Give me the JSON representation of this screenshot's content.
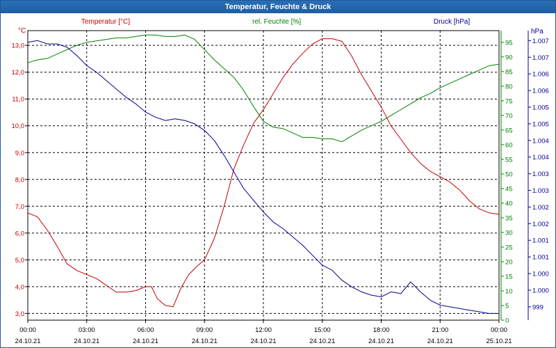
{
  "chart_data": {
    "type": "line",
    "title": "Temperatur, Feuchte & Druck",
    "x_ticks": [
      {
        "time": "00:00",
        "date": "24.10.21"
      },
      {
        "time": "03:00",
        "date": "24.10.21"
      },
      {
        "time": "06:00",
        "date": "24.10.21"
      },
      {
        "time": "09:00",
        "date": "24.10.21"
      },
      {
        "time": "12:00",
        "date": "24.10.21"
      },
      {
        "time": "15:00",
        "date": "24.10.21"
      },
      {
        "time": "18:00",
        "date": "24.10.21"
      },
      {
        "time": "21:00",
        "date": "24.10.21"
      },
      {
        "time": "00:00",
        "date": "25.10.21"
      }
    ],
    "xlim_hours": [
      0,
      24
    ],
    "grid": true,
    "axes": {
      "left": {
        "label": "Temperatur [°C]",
        "unit": "°C",
        "color": "#c00000",
        "ylim": [
          2.75,
          13.55
        ],
        "ticks": [
          "3,0",
          "4,0",
          "5,0",
          "6,0",
          "7,0",
          "8,0",
          "9,0",
          "10,0",
          "11,0",
          "12,0",
          "13,0"
        ]
      },
      "right1": {
        "label": "rel. Feuchte [%]",
        "unit": "%",
        "color": "#008000",
        "ylim": [
          0,
          99
        ],
        "ticks": [
          "0",
          "5",
          "10",
          "15",
          "20",
          "25",
          "30",
          "35",
          "40",
          "45",
          "50",
          "55",
          "60",
          "65",
          "70",
          "75",
          "80",
          "85",
          "90",
          "95"
        ]
      },
      "right2": {
        "label": "Druck [hPa]",
        "unit": "hPa",
        "color": "#000090",
        "ylim": [
          998.6,
          1007.3
        ],
        "ticks": [
          "999",
          "1.000",
          "1.000",
          "1.001",
          "1.001",
          "1.002",
          "1.002",
          "1.003",
          "1.003",
          "1.004",
          "1.004",
          "1.005",
          "1.005",
          "1.006",
          "1.006",
          "1.007",
          "1.007"
        ]
      }
    },
    "series": [
      {
        "name": "Temperatur [°C]",
        "axis": "left",
        "color": "#c00000",
        "x": [
          0,
          0.5,
          1,
          1.5,
          2,
          2.5,
          3,
          3.5,
          4,
          4.5,
          5,
          5.5,
          6,
          6.3,
          6.6,
          7,
          7.4,
          7.8,
          8.2,
          8.6,
          9,
          9.5,
          10,
          10.5,
          11,
          11.5,
          12,
          12.5,
          13,
          13.5,
          14,
          14.5,
          15,
          15.5,
          16,
          16.5,
          17,
          17.5,
          18,
          18.5,
          19,
          19.5,
          20,
          20.5,
          21,
          21.5,
          22,
          22.5,
          23,
          23.5,
          24
        ],
        "y": [
          6.75,
          6.6,
          6.1,
          5.5,
          4.85,
          4.6,
          4.45,
          4.3,
          4.05,
          3.8,
          3.8,
          3.85,
          4.0,
          4.0,
          3.55,
          3.3,
          3.25,
          3.95,
          4.45,
          4.75,
          5.0,
          5.8,
          7.0,
          8.4,
          9.3,
          10.1,
          10.6,
          11.2,
          11.8,
          12.3,
          12.7,
          13.05,
          13.25,
          13.25,
          13.15,
          12.6,
          11.9,
          11.3,
          10.7,
          10.0,
          9.5,
          9.0,
          8.6,
          8.3,
          8.1,
          7.9,
          7.6,
          7.2,
          6.9,
          6.75,
          6.7
        ]
      },
      {
        "name": "rel. Feuchte [%]",
        "axis": "right1",
        "color": "#008000",
        "x": [
          0,
          0.5,
          1,
          1.5,
          2,
          2.5,
          3,
          3.5,
          4,
          4.5,
          5,
          5.5,
          6,
          6.5,
          7,
          7.5,
          8,
          8.5,
          9,
          9.5,
          10,
          10.5,
          11,
          11.5,
          12,
          12.5,
          13,
          13.5,
          14,
          14.5,
          15,
          15.5,
          16,
          16.5,
          17,
          17.5,
          18,
          18.5,
          19,
          19.5,
          20,
          20.5,
          21,
          21.5,
          22,
          22.5,
          23,
          23.5,
          24
        ],
        "y": [
          88,
          89,
          89.5,
          91,
          92.5,
          94,
          95,
          95.5,
          96,
          96.5,
          96.5,
          97,
          97.5,
          97.5,
          97,
          97,
          97.5,
          96,
          92.5,
          89,
          86,
          83,
          78.5,
          73,
          68,
          66,
          65.5,
          64,
          62.5,
          62.5,
          62,
          62,
          61,
          63,
          65,
          66.5,
          68,
          70,
          72,
          74,
          76,
          77.5,
          79.5,
          81,
          82.5,
          84,
          85.5,
          87,
          87.5
        ]
      },
      {
        "name": "Druck [hPa]",
        "axis": "right2",
        "color": "#000090",
        "x": [
          0,
          0.5,
          1,
          1.5,
          2,
          2.5,
          3,
          3.5,
          4,
          4.5,
          5,
          5.5,
          6,
          6.5,
          7,
          7.5,
          8,
          8.5,
          9,
          9.5,
          10,
          10.5,
          11,
          11.5,
          12,
          12.5,
          13,
          13.5,
          14,
          14.5,
          15,
          15.5,
          16,
          16.5,
          17,
          17.5,
          18,
          18.5,
          19,
          19.5,
          20,
          20.5,
          21,
          21.5,
          22,
          22.5,
          23,
          23.5,
          24
        ],
        "y": [
          1006.95,
          1007.0,
          1006.9,
          1006.9,
          1006.8,
          1006.55,
          1006.25,
          1006.05,
          1005.8,
          1005.55,
          1005.3,
          1005.1,
          1004.85,
          1004.7,
          1004.6,
          1004.65,
          1004.6,
          1004.5,
          1004.3,
          1004.0,
          1003.55,
          1003.05,
          1002.55,
          1002.2,
          1001.85,
          1001.55,
          1001.35,
          1001.1,
          1000.85,
          1000.55,
          1000.25,
          1000.1,
          999.8,
          999.6,
          999.45,
          999.35,
          999.3,
          999.45,
          999.4,
          999.75,
          999.45,
          999.2,
          999.05,
          999.0,
          998.95,
          998.9,
          998.85,
          998.8,
          998.8
        ]
      }
    ]
  }
}
